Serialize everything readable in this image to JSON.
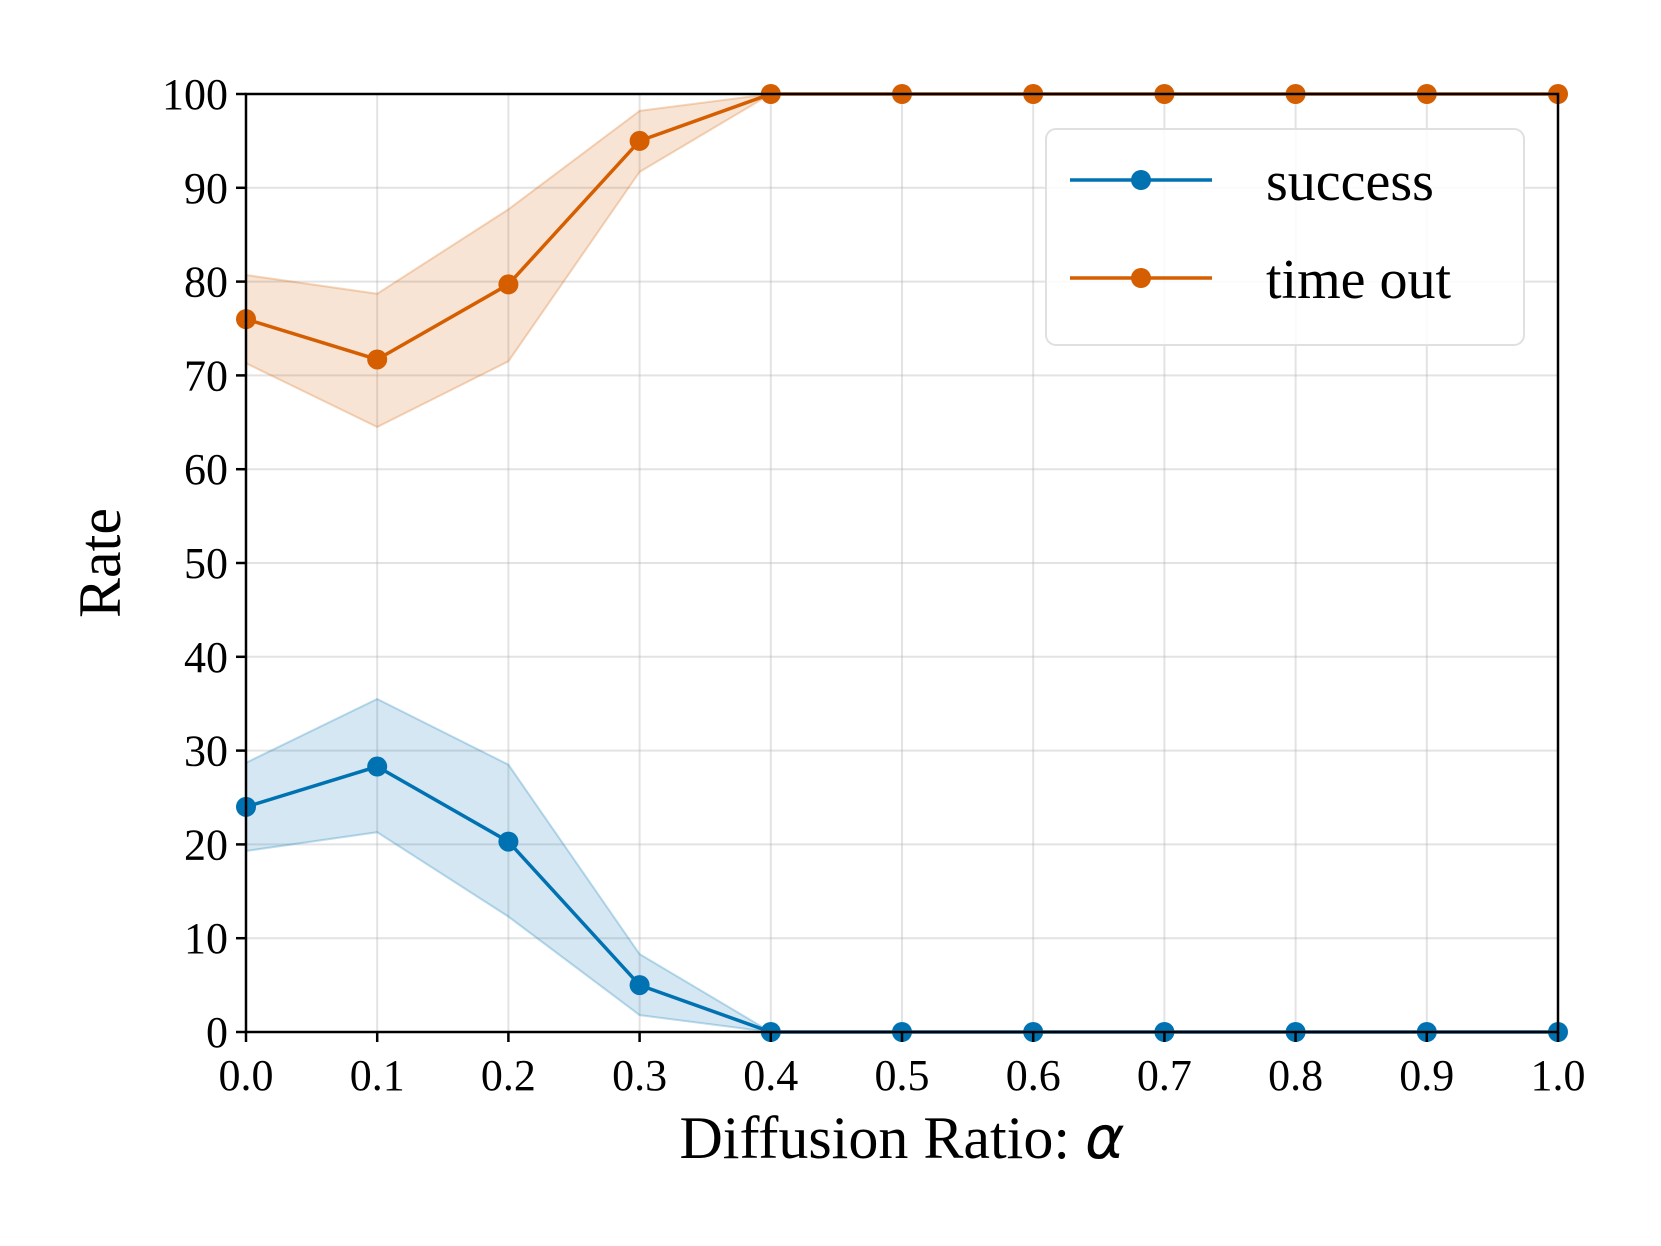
{
  "chart_data": {
    "type": "line",
    "title": "",
    "xlabel": "Diffusion Ratio: ",
    "xlabel_symbol": "α",
    "ylabel": "Rate",
    "xlim": [
      0.0,
      1.0
    ],
    "ylim": [
      0,
      100
    ],
    "grid": true,
    "legend_position": "top-right",
    "x": [
      0.0,
      0.1,
      0.2,
      0.3,
      0.4,
      0.5,
      0.6,
      0.7,
      0.8,
      0.9,
      1.0
    ],
    "x_tick_labels": [
      "0.0",
      "0.1",
      "0.2",
      "0.3",
      "0.4",
      "0.5",
      "0.6",
      "0.7",
      "0.8",
      "0.9",
      "1.0"
    ],
    "y_ticks": [
      0,
      10,
      20,
      30,
      40,
      50,
      60,
      70,
      80,
      90,
      100
    ],
    "y_tick_labels": [
      "0",
      "10",
      "20",
      "30",
      "40",
      "50",
      "60",
      "70",
      "80",
      "90",
      "100"
    ],
    "series": [
      {
        "name": "success",
        "color": "#0072b2",
        "values": [
          24,
          28.3,
          20.3,
          5,
          0,
          0,
          0,
          0,
          0,
          0,
          0
        ],
        "band_upper": [
          28.7,
          35.5,
          28.5,
          8.3,
          0,
          0,
          0,
          0,
          0,
          0,
          0
        ],
        "band_lower": [
          19.3,
          21.3,
          12.3,
          1.8,
          0,
          0,
          0,
          0,
          0,
          0,
          0
        ]
      },
      {
        "name": "time out",
        "color": "#d55e00",
        "values": [
          76,
          71.7,
          79.7,
          95,
          100,
          100,
          100,
          100,
          100,
          100,
          100
        ],
        "band_upper": [
          80.7,
          78.7,
          87.7,
          98.2,
          100,
          100,
          100,
          100,
          100,
          100,
          100
        ],
        "band_lower": [
          71.3,
          64.5,
          71.5,
          91.7,
          100,
          100,
          100,
          100,
          100,
          100,
          100
        ]
      }
    ]
  }
}
